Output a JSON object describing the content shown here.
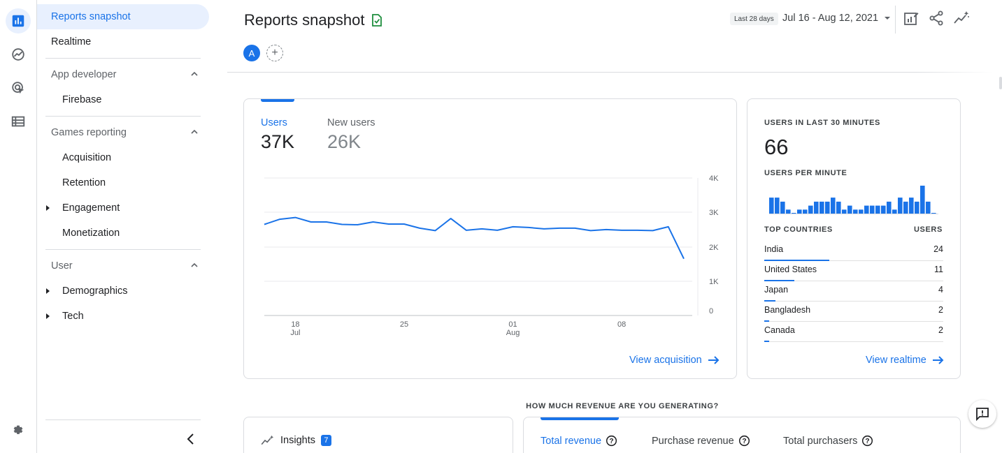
{
  "nav": {
    "reports_snapshot": "Reports snapshot",
    "realtime": "Realtime",
    "app_developer": "App developer",
    "firebase": "Firebase",
    "games_reporting": "Games reporting",
    "acquisition": "Acquisition",
    "retention": "Retention",
    "engagement": "Engagement",
    "monetization": "Monetization",
    "user": "User",
    "demographics": "Demographics",
    "tech": "Tech"
  },
  "header": {
    "title": "Reports snapshot",
    "avatar_letter": "A",
    "date_chip": "Last 28 days",
    "date_range": "Jul 16 - Aug 12, 2021"
  },
  "overview": {
    "users_label": "Users",
    "users_value": "37K",
    "new_users_label": "New users",
    "new_users_value": "26K",
    "view_link": "View acquisition"
  },
  "chart_data": {
    "type": "line",
    "title": "",
    "xlabel": "",
    "ylabel": "",
    "ylim": [
      0,
      4000
    ],
    "yticks": [
      "4K",
      "3K",
      "2K",
      "1K",
      "0"
    ],
    "xticks": [
      {
        "day": "18",
        "month": "Jul"
      },
      {
        "day": "25",
        "month": ""
      },
      {
        "day": "01",
        "month": "Aug"
      },
      {
        "day": "08",
        "month": ""
      }
    ],
    "grid": true,
    "series": [
      {
        "values": [
          2650,
          2800,
          2850,
          2720,
          2720,
          2650,
          2640,
          2720,
          2660,
          2660,
          2540,
          2470,
          2820,
          2480,
          2520,
          2480,
          2580,
          2560,
          2520,
          2540,
          2540,
          2470,
          2500,
          2480,
          2480,
          2470,
          2580,
          1650
        ]
      }
    ],
    "color": "#1a73e8"
  },
  "realtime": {
    "users_30_label": "USERS IN LAST 30 MINUTES",
    "users_30_value": "66",
    "per_minute_label": "USERS PER MINUTE",
    "per_minute": [
      4,
      4,
      3,
      1,
      0,
      1,
      1,
      2,
      3,
      3,
      3,
      4,
      3,
      1,
      2,
      1,
      1,
      2,
      2,
      2,
      2,
      3,
      1,
      4,
      3,
      4,
      3,
      7,
      3,
      0
    ],
    "top_countries_label": "TOP COUNTRIES",
    "users_col_label": "USERS",
    "countries": [
      {
        "name": "India",
        "value": "24",
        "share": 1.0
      },
      {
        "name": "United States",
        "value": "11",
        "share": 0.46
      },
      {
        "name": "Japan",
        "value": "4",
        "share": 0.17
      },
      {
        "name": "Bangladesh",
        "value": "2",
        "share": 0.08
      },
      {
        "name": "Canada",
        "value": "2",
        "share": 0.08
      }
    ],
    "view_link": "View realtime"
  },
  "revenue": {
    "question": "HOW MUCH REVENUE ARE YOU GENERATING?",
    "total_revenue": "Total revenue",
    "purchase_revenue": "Purchase revenue",
    "total_purchasers": "Total purchasers"
  },
  "insights": {
    "label": "Insights",
    "count": "7"
  }
}
